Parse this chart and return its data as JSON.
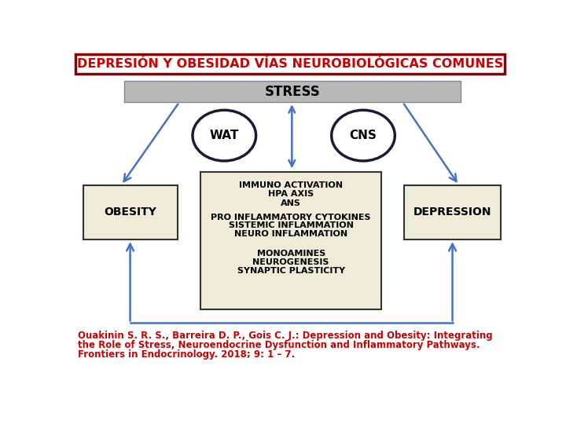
{
  "title": "DEPRESIÓN Y OBESIDAD VÍAS NEUROBIOLÓGICAS COMUNES",
  "title_color": "#cc0000",
  "title_border_color": "#8b0000",
  "bg_color": "#ffffff",
  "stress_text": "STRESS",
  "stress_bg": "#b8b8b8",
  "wat_text": "WAT",
  "cns_text": "CNS",
  "obesity_text": "OBESITY",
  "depression_text": "DEPRESSION",
  "center_text_groups": [
    [
      "IMMUNO ACTIVATION",
      "HPA AXIS",
      "ANS"
    ],
    [
      "PRO INFLAMMATORY CYTOKINES",
      "SISTEMIC INFLAMMATION",
      "NEURO INFLAMMATION"
    ],
    [
      "MONOAMINES",
      "NEUROGENESIS",
      "SYNAPTIC PLASTICITY"
    ]
  ],
  "citation_line1": "Ouakinin S. R. S., Barreira D. P., Gois C. J.: Depression and Obesity: Integrating",
  "citation_line2": "the Role of Stress, Neuroendocrine Dysfunction and Inflammatory Pathways.",
  "citation_line3": "Frontiers in Endocrinology. 2018; 9: 1 – 7.",
  "citation_color": "#cc0000",
  "box_facecolor": "#f0ead8",
  "box_edgecolor": "#333333",
  "arrow_color": "#4472c4",
  "circle_edgecolor": "#1a1a3a",
  "stress_edgecolor": "#888888"
}
